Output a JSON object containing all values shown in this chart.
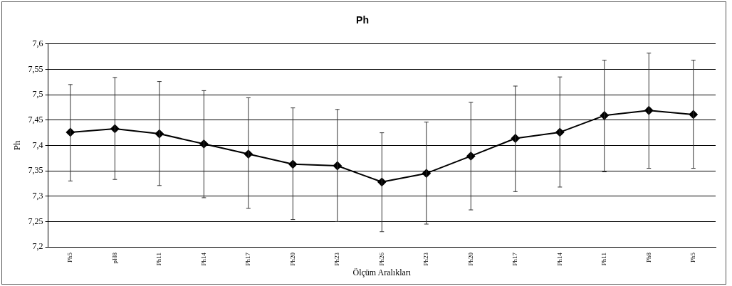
{
  "chart_data": {
    "type": "line",
    "title": "Ph",
    "xlabel": "Ölçüm Aralıkları",
    "ylabel": "Ph",
    "categories": [
      "Ph5",
      "pH8",
      "Ph11",
      "Ph14",
      "Ph17",
      "Ph20",
      "Ph23",
      "Ph26",
      "Ph23",
      "Ph20",
      "Ph17",
      "Ph14",
      "Ph11",
      "Ph8",
      "Ph5"
    ],
    "values": [
      7.426,
      7.433,
      7.423,
      7.403,
      7.383,
      7.363,
      7.36,
      7.328,
      7.345,
      7.379,
      7.414,
      7.426,
      7.459,
      7.469,
      7.461
    ],
    "errors": [
      [
        7.33,
        7.52
      ],
      [
        7.333,
        7.534
      ],
      [
        7.321,
        7.526
      ],
      [
        7.297,
        7.508
      ],
      [
        7.276,
        7.494
      ],
      [
        7.254,
        7.474
      ],
      [
        7.25,
        7.471
      ],
      [
        7.23,
        7.425
      ],
      [
        7.245,
        7.446
      ],
      [
        7.273,
        7.485
      ],
      [
        7.309,
        7.517
      ],
      [
        7.318,
        7.535
      ],
      [
        7.348,
        7.568
      ],
      [
        7.355,
        7.582
      ],
      [
        7.355,
        7.568
      ]
    ],
    "color": "#000000",
    "marker": "diamond",
    "line_style": "solid",
    "grid": "y",
    "legend": false,
    "ylim": [
      7.2,
      7.6
    ],
    "yticks": [
      {
        "value": 7.2,
        "label": "7,2"
      },
      {
        "value": 7.25,
        "label": "7,25"
      },
      {
        "value": 7.3,
        "label": "7,3"
      },
      {
        "value": 7.35,
        "label": "7,35"
      },
      {
        "value": 7.4,
        "label": "7,4"
      },
      {
        "value": 7.45,
        "label": "7,45"
      },
      {
        "value": 7.5,
        "label": "7,5"
      },
      {
        "value": 7.55,
        "label": "7,55"
      },
      {
        "value": 7.6,
        "label": "7,6"
      }
    ]
  }
}
